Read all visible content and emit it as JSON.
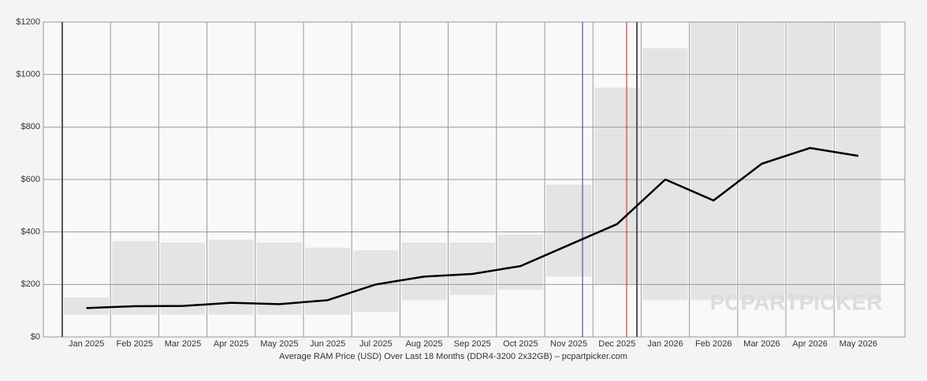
{
  "chart_data": {
    "type": "line",
    "xlabel": "Average RAM Price (USD) Over Last 18 Months (DDR4-3200 2x32GB) – pcpartpicker.com",
    "watermark": "PCPARTPICKER",
    "categories": [
      "Jan 2025",
      "Feb 2025",
      "Mar 2025",
      "Apr 2025",
      "May 2025",
      "Jun 2025",
      "Jul 2025",
      "Aug 2025",
      "Sep 2025",
      "Oct 2025",
      "Nov 2025",
      "Dec 2025",
      "Jan 2026",
      "Feb 2026",
      "Mar 2026",
      "Apr 2026",
      "May 2026"
    ],
    "series": [
      {
        "color": "#000000",
        "values": [
          110,
          117,
          118,
          130,
          125,
          140,
          200,
          230,
          240,
          270,
          350,
          430,
          600,
          520,
          660,
          720,
          690
        ]
      }
    ],
    "range": {
      "color": "#e4e4e4",
      "low": [
        85,
        85,
        85,
        85,
        85,
        85,
        95,
        140,
        160,
        180,
        230,
        200,
        140,
        140,
        140,
        140,
        140
      ],
      "high": [
        150,
        365,
        360,
        370,
        360,
        340,
        330,
        360,
        360,
        390,
        580,
        950,
        1100,
        1200,
        1200,
        1200,
        1200
      ]
    },
    "ylim": [
      0,
      1200
    ],
    "yticks": [
      {
        "value": 0,
        "label": "$0"
      },
      {
        "value": 200,
        "label": "$200"
      },
      {
        "value": 400,
        "label": "$400"
      },
      {
        "value": 600,
        "label": "$600"
      },
      {
        "value": 800,
        "label": "$800"
      },
      {
        "value": 1000,
        "label": "$1000"
      },
      {
        "value": 1200,
        "label": "$1200"
      }
    ],
    "grid": true
  }
}
